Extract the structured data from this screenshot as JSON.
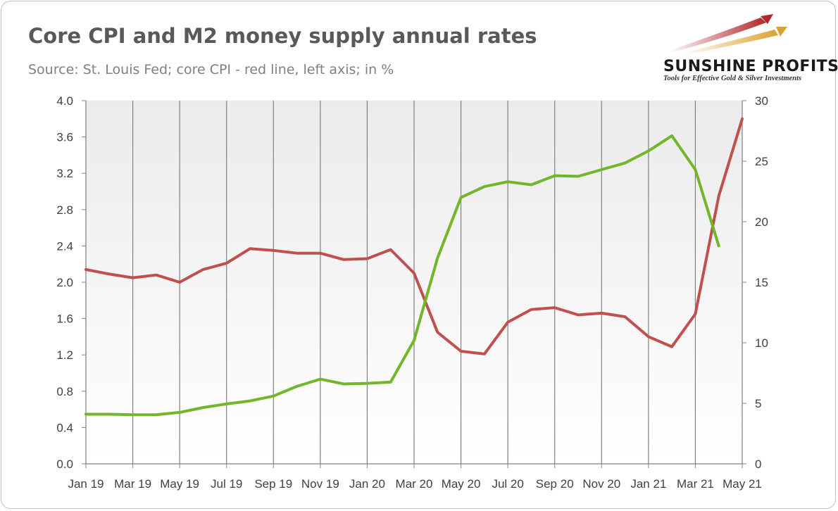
{
  "title": "Core CPI and M2 money supply annual rates",
  "subtitle": "Source: St. Louis Fed; core CPI - red line, left axis; in %",
  "logo": {
    "name": "SUNSHINE PROFITS",
    "tagline": "Tools for Effective Gold & Silver Investments"
  },
  "colors": {
    "cpi": "#c0504d",
    "m2": "#72b62a",
    "grid": "#808080",
    "plot_top": "#ebebeb",
    "plot_bottom": "#ffffff"
  },
  "chart_data": {
    "type": "line",
    "title": "Core CPI and M2 money supply annual rates",
    "subtitle": "Source: St. Louis Fed; core CPI - red line, left axis; in %",
    "x": [
      "Jan 19",
      "Feb 19",
      "Mar 19",
      "Apr 19",
      "May 19",
      "Jun 19",
      "Jul 19",
      "Aug 19",
      "Sep 19",
      "Oct 19",
      "Nov 19",
      "Dec 19",
      "Jan 20",
      "Feb 20",
      "Mar 20",
      "Apr 20",
      "May 20",
      "Jun 20",
      "Jul 20",
      "Aug 20",
      "Sep 20",
      "Oct 20",
      "Nov 20",
      "Dec 20",
      "Jan 21",
      "Feb 21",
      "Mar 21",
      "Apr 21",
      "May 21"
    ],
    "x_tick_labels": [
      "Jan 19",
      "Mar 19",
      "May 19",
      "Jul 19",
      "Sep 19",
      "Nov 19",
      "Jan 20",
      "Mar 20",
      "May 20",
      "Jul 20",
      "Sep 20",
      "Nov 20",
      "Jan 21",
      "Mar 21",
      "May 21"
    ],
    "left_axis": {
      "ylim": [
        0,
        4.0
      ],
      "ticks": [
        "0.0",
        "0.4",
        "0.8",
        "1.2",
        "1.6",
        "2.0",
        "2.4",
        "2.8",
        "3.2",
        "3.6",
        "4.0"
      ]
    },
    "right_axis": {
      "ylim": [
        0,
        30
      ],
      "ticks": [
        "0",
        "5",
        "10",
        "15",
        "20",
        "25",
        "30"
      ]
    },
    "grid": "vertical",
    "series": [
      {
        "axis": "left",
        "color": "#c0504d",
        "values": [
          2.14,
          2.09,
          2.05,
          2.08,
          2.0,
          2.14,
          2.21,
          2.37,
          2.35,
          2.32,
          2.32,
          2.25,
          2.26,
          2.36,
          2.1,
          1.45,
          1.24,
          1.21,
          1.56,
          1.7,
          1.72,
          1.64,
          1.66,
          1.62,
          1.4,
          1.29,
          1.65,
          2.95,
          3.8
        ]
      },
      {
        "axis": "right",
        "color": "#72b62a",
        "values": [
          4.1,
          4.1,
          4.05,
          4.05,
          4.25,
          4.65,
          4.95,
          5.2,
          5.6,
          6.4,
          7.0,
          6.6,
          6.65,
          6.75,
          10.2,
          17.0,
          22.0,
          22.9,
          23.3,
          23.05,
          23.8,
          23.75,
          24.3,
          24.85,
          25.85,
          27.1,
          24.3,
          18.0,
          null
        ]
      }
    ]
  }
}
